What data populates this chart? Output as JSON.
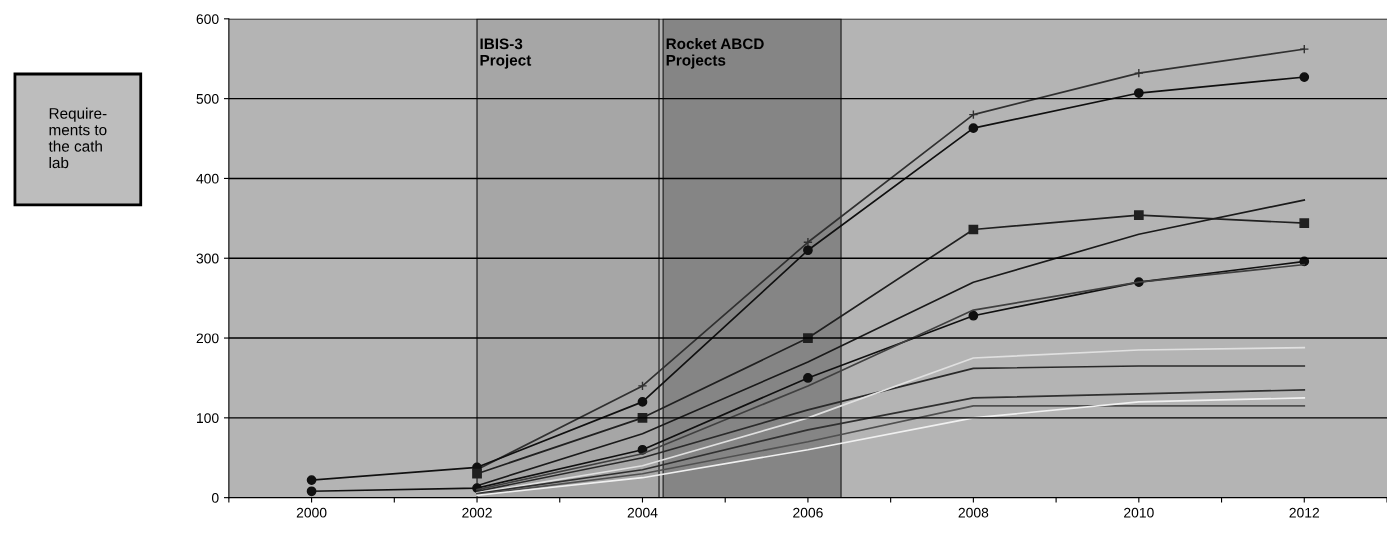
{
  "chart_data": {
    "type": "line",
    "x": [
      2000,
      2002,
      2004,
      2006,
      2008,
      2010,
      2012
    ],
    "series": [
      {
        "color": "#303030",
        "marker": "cross",
        "values": [
          null,
          35,
          140,
          320,
          480,
          532,
          562
        ]
      },
      {
        "color": "#101010",
        "marker": "circle",
        "values": [
          22,
          38,
          120,
          310,
          463,
          507,
          527
        ]
      },
      {
        "color": "#202020",
        "marker": "square",
        "values": [
          null,
          30,
          100,
          200,
          336,
          354,
          344
        ]
      },
      {
        "color": "#1a1a1a",
        "marker": "none",
        "values": [
          null,
          15,
          80,
          170,
          270,
          330,
          373
        ]
      },
      {
        "color": "#101010",
        "marker": "circle",
        "values": [
          8,
          12,
          60,
          150,
          228,
          270,
          296
        ]
      },
      {
        "color": "#404040",
        "marker": "none",
        "values": [
          null,
          10,
          55,
          140,
          235,
          270,
          292
        ]
      },
      {
        "color": "#2a2a2a",
        "marker": "none",
        "values": [
          null,
          8,
          50,
          110,
          162,
          165,
          165
        ]
      },
      {
        "color": "#e0e0e0",
        "marker": "none",
        "values": [
          null,
          6,
          40,
          100,
          175,
          185,
          188
        ]
      },
      {
        "color": "#303030",
        "marker": "none",
        "values": [
          null,
          5,
          35,
          85,
          125,
          130,
          135
        ]
      },
      {
        "color": "#505050",
        "marker": "none",
        "values": [
          null,
          4,
          30,
          70,
          115,
          115,
          115
        ]
      },
      {
        "color": "#f0f0f0",
        "marker": "none",
        "values": [
          null,
          3,
          25,
          60,
          100,
          120,
          125
        ]
      }
    ],
    "xlim": [
      1999,
      2013
    ],
    "xticks": [
      {
        "value": 1999,
        "label": null
      },
      2000,
      {
        "value": 2001,
        "label": null
      },
      2002,
      {
        "value": 2003,
        "label": null
      },
      2004,
      {
        "value": 2005,
        "label": null
      },
      2006,
      {
        "value": 2007,
        "label": null
      },
      2008,
      {
        "value": 2009,
        "label": null
      },
      2010,
      {
        "value": 2011,
        "label": null
      },
      2012,
      {
        "value": 2013,
        "label": null
      }
    ],
    "ylim": [
      0,
      600
    ],
    "yticks": [
      0,
      100,
      200,
      300,
      400,
      500,
      600
    ],
    "grid": "y",
    "bands": [
      {
        "axis": "x",
        "from": 2002,
        "to": 2004.2,
        "label": "IBIS-3\nProject",
        "color": "#a6a6a6"
      },
      {
        "axis": "x",
        "from": 2004.25,
        "to": 2006.4,
        "label": "Rocket ABCD\nProjects",
        "color": "#858585"
      }
    ],
    "annotations": [
      "Require-\nments to\nthe cath\nlab"
    ]
  }
}
